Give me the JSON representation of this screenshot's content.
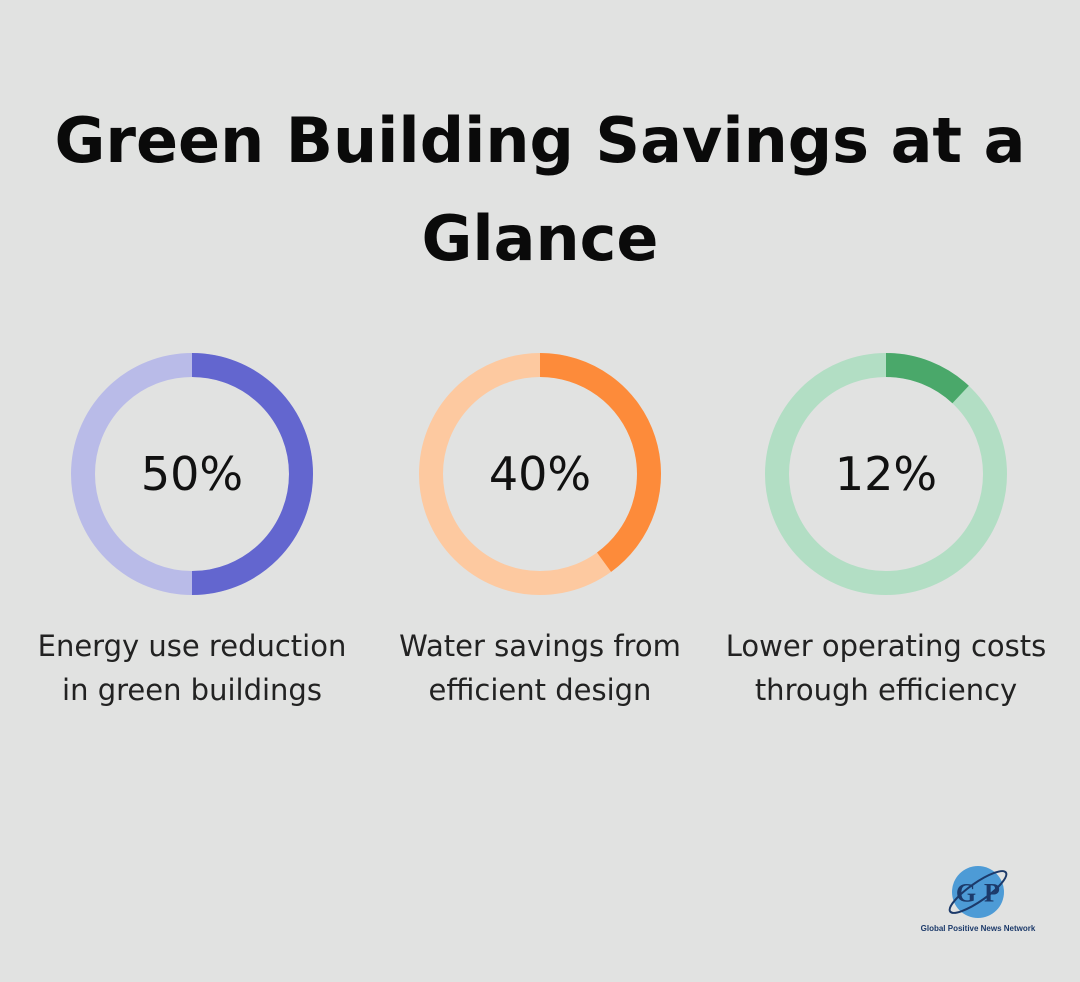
{
  "title": "Green Building Savings at a Glance",
  "chart_data": [
    {
      "type": "donut",
      "values": [
        50
      ],
      "value_labels": [
        "50%"
      ],
      "categories": [
        "Energy use reduction in green buildings"
      ],
      "color": "#6366cf",
      "track_color": "#b9bbe8"
    },
    {
      "type": "donut",
      "values": [
        40
      ],
      "value_labels": [
        "40%"
      ],
      "categories": [
        "Water savings from efficient design"
      ],
      "color": "#fd8b3a",
      "track_color": "#fdc9a0"
    },
    {
      "type": "donut",
      "values": [
        12
      ],
      "value_labels": [
        "12%"
      ],
      "categories": [
        "Lower operating costs through efficiency"
      ],
      "color": "#4aa86a",
      "track_color": "#b2dec4"
    }
  ],
  "logo": {
    "initials": [
      "G",
      "P"
    ],
    "name": "Global Positive News Network"
  }
}
